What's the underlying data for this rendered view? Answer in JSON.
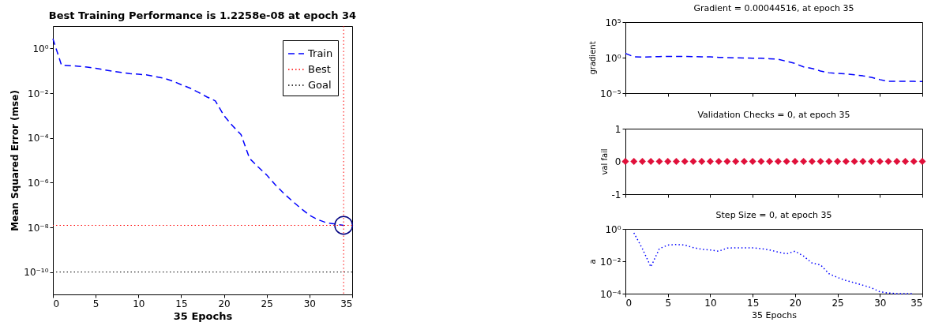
{
  "chart_data": [
    {
      "type": "line",
      "title": "Best Training Performance is 1.2258e-08 at epoch 34",
      "xlabel": "35 Epochs",
      "ylabel": "Mean Squared Error  (mse)",
      "log": "y",
      "xlim": [
        0,
        35
      ],
      "xticks": [
        0,
        5,
        10,
        15,
        20,
        25,
        30,
        35
      ],
      "ylim": [
        1e-11,
        10
      ],
      "yticks": [
        {
          "value": 1e-10,
          "label": "10⁻¹⁰"
        },
        {
          "value": 1e-08,
          "label": "10⁻⁸"
        },
        {
          "value": 1e-06,
          "label": "10⁻⁶"
        },
        {
          "value": 0.0001,
          "label": "10⁻⁴"
        },
        {
          "value": 0.01,
          "label": "10⁻²"
        },
        {
          "value": 1,
          "label": "10⁰"
        }
      ],
      "legend": "top right",
      "series": [
        {
          "name": "Train",
          "color": "#0000ff",
          "line_style": "dashed",
          "x": [
            0,
            1,
            2,
            3,
            4,
            5,
            6,
            7,
            8,
            9,
            10,
            11,
            12,
            13,
            14,
            15,
            16,
            17,
            18,
            19,
            20,
            21,
            22,
            23,
            24,
            25,
            26,
            27,
            28,
            29,
            30,
            31,
            32,
            33,
            34
          ],
          "values": [
            2.7,
            0.18,
            0.17,
            0.16,
            0.145,
            0.13,
            0.11,
            0.095,
            0.085,
            0.075,
            0.07,
            0.065,
            0.055,
            0.046,
            0.035,
            0.024,
            0.017,
            0.011,
            0.0068,
            0.0045,
            0.001,
            0.00035,
            0.00014,
            1.2e-05,
            5e-06,
            2.2e-06,
            8e-07,
            3.3e-07,
            1.5e-07,
            7e-08,
            3.5e-08,
            2.2e-08,
            1.6e-08,
            1.4e-08,
            1.2258e-08
          ]
        },
        {
          "type": "scatter",
          "marker": "circle",
          "color": "#000080",
          "x": [
            34
          ],
          "values": [
            1.2258e-08
          ]
        }
      ],
      "ref_lines": [
        {
          "axis": "y",
          "value": 1.2258e-08,
          "label": "Best",
          "color": "#ff0000",
          "line_style": "dotted"
        },
        {
          "axis": "y",
          "value": 1e-10,
          "label": "Goal",
          "color": "#000000",
          "line_style": "dotted"
        },
        {
          "axis": "x",
          "value": 34,
          "color": "#ff0000",
          "line_style": "dotted"
        }
      ]
    },
    {
      "type": "line",
      "title": "Gradient = 0.00044516, at epoch 35",
      "ylabel": "gradient",
      "log": "y",
      "tick_labels": "y",
      "xlim": [
        0,
        35
      ],
      "xticks": [
        0,
        5,
        10,
        15,
        20,
        25,
        30,
        35
      ],
      "ylim": [
        1e-05,
        100000
      ],
      "yticks": [
        {
          "value": 1e-05,
          "label": "10⁻⁵"
        },
        {
          "value": 1,
          "label": "10⁰"
        },
        {
          "value": 100000,
          "label": "10⁵"
        }
      ],
      "line_style": "dashed",
      "series": [
        {
          "color": "#0000ff",
          "x": [
            0,
            1,
            2,
            3,
            4,
            5,
            6,
            7,
            8,
            9,
            10,
            11,
            12,
            13,
            14,
            15,
            16,
            17,
            18,
            19,
            20,
            21,
            22,
            23,
            24,
            25,
            26,
            27,
            28,
            29,
            30,
            31,
            32,
            33,
            34,
            35
          ],
          "values": [
            4,
            1.3,
            1.2,
            1.3,
            1.4,
            1.5,
            1.5,
            1.5,
            1.4,
            1.3,
            1.3,
            1.1,
            1.0,
            0.95,
            0.9,
            0.85,
            0.8,
            0.7,
            0.6,
            0.3,
            0.15,
            0.05,
            0.03,
            0.013,
            0.0075,
            0.006,
            0.005,
            0.0038,
            0.0027,
            0.0017,
            0.0008,
            0.00046,
            0.00045,
            0.00045,
            0.00045,
            0.00044516
          ]
        }
      ]
    },
    {
      "type": "scatter",
      "title": "Validation Checks = 0, at epoch 35",
      "ylabel": "val fail",
      "tick_labels": "y",
      "marker": "diamond",
      "xlim": [
        0,
        35
      ],
      "xticks": [
        0,
        5,
        10,
        15,
        20,
        25,
        30,
        35
      ],
      "ylim": [
        -1,
        1
      ],
      "yticks": [
        -1,
        0,
        1
      ],
      "series": [
        {
          "color": "#e0103a",
          "x": [
            0,
            1,
            2,
            3,
            4,
            5,
            6,
            7,
            8,
            9,
            10,
            11,
            12,
            13,
            14,
            15,
            16,
            17,
            18,
            19,
            20,
            21,
            22,
            23,
            24,
            25,
            26,
            27,
            28,
            29,
            30,
            31,
            32,
            33,
            34,
            35
          ],
          "values": [
            0,
            0,
            0,
            0,
            0,
            0,
            0,
            0,
            0,
            0,
            0,
            0,
            0,
            0,
            0,
            0,
            0,
            0,
            0,
            0,
            0,
            0,
            0,
            0,
            0,
            0,
            0,
            0,
            0,
            0,
            0,
            0,
            0,
            0,
            0,
            0
          ]
        }
      ]
    },
    {
      "type": "line",
      "title": "Step Size = 0, at epoch 35",
      "xlabel": "35 Epochs",
      "ylabel": "a",
      "log": "y",
      "xlim": [
        0,
        35
      ],
      "xticks": [
        0,
        5,
        10,
        15,
        20,
        25,
        30,
        35
      ],
      "ylim": [
        0.0001,
        1
      ],
      "yticks": [
        {
          "value": 0.0001,
          "label": "10⁻⁴"
        },
        {
          "value": 0.01,
          "label": "10⁻²"
        },
        {
          "value": 1,
          "label": "10⁰"
        }
      ],
      "line_style": "dotted",
      "series": [
        {
          "color": "#0000ff",
          "x": [
            1,
            2,
            3,
            4,
            5,
            6,
            7,
            8,
            9,
            10,
            11,
            12,
            13,
            14,
            15,
            16,
            17,
            18,
            19,
            20,
            21,
            22,
            23,
            24,
            25,
            26,
            27,
            28,
            29,
            30,
            31,
            32,
            33,
            34
          ],
          "values": [
            0.57,
            0.06,
            0.0045,
            0.06,
            0.1,
            0.11,
            0.1,
            0.07,
            0.055,
            0.05,
            0.042,
            0.065,
            0.068,
            0.068,
            0.068,
            0.06,
            0.05,
            0.037,
            0.029,
            0.042,
            0.021,
            0.0078,
            0.006,
            0.0017,
            0.001,
            0.00065,
            0.00047,
            0.00033,
            0.00023,
            0.00013,
            0.00011,
            0.0001,
            0.0001,
            0.0001
          ]
        }
      ]
    }
  ]
}
